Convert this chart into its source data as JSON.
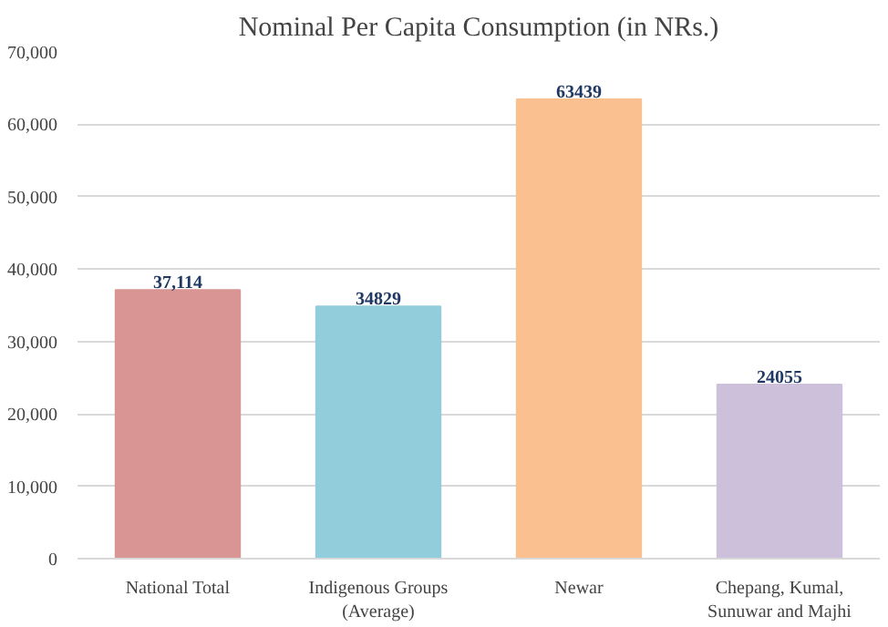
{
  "chart_data": {
    "type": "bar",
    "title": "Nominal Per Capita Consumption (in NRs.)",
    "categories": [
      "National Total",
      "Indigenous Groups\n(Average)",
      "Newar",
      "Chepang, Kumal,\nSunuwar and Majhi"
    ],
    "values": [
      37114,
      34829,
      63439,
      24055
    ],
    "value_labels": [
      "37,114",
      "34829",
      "63439",
      "24055"
    ],
    "colors": [
      "#d99594",
      "#92cddc",
      "#fac08f",
      "#ccc0da"
    ],
    "ylim": [
      0,
      70000
    ],
    "yticks": [
      0,
      {
        "value": 10000,
        "label": "10,000"
      },
      {
        "value": 20000,
        "label": "20,000"
      },
      {
        "value": 30000,
        "label": "30,000"
      },
      {
        "value": 40000,
        "label": "40,000"
      },
      {
        "value": 50000,
        "label": "50,000"
      },
      {
        "value": 60000,
        "label": "60,000"
      },
      {
        "value": 70000,
        "label": "70,000"
      }
    ],
    "grid": "y"
  }
}
